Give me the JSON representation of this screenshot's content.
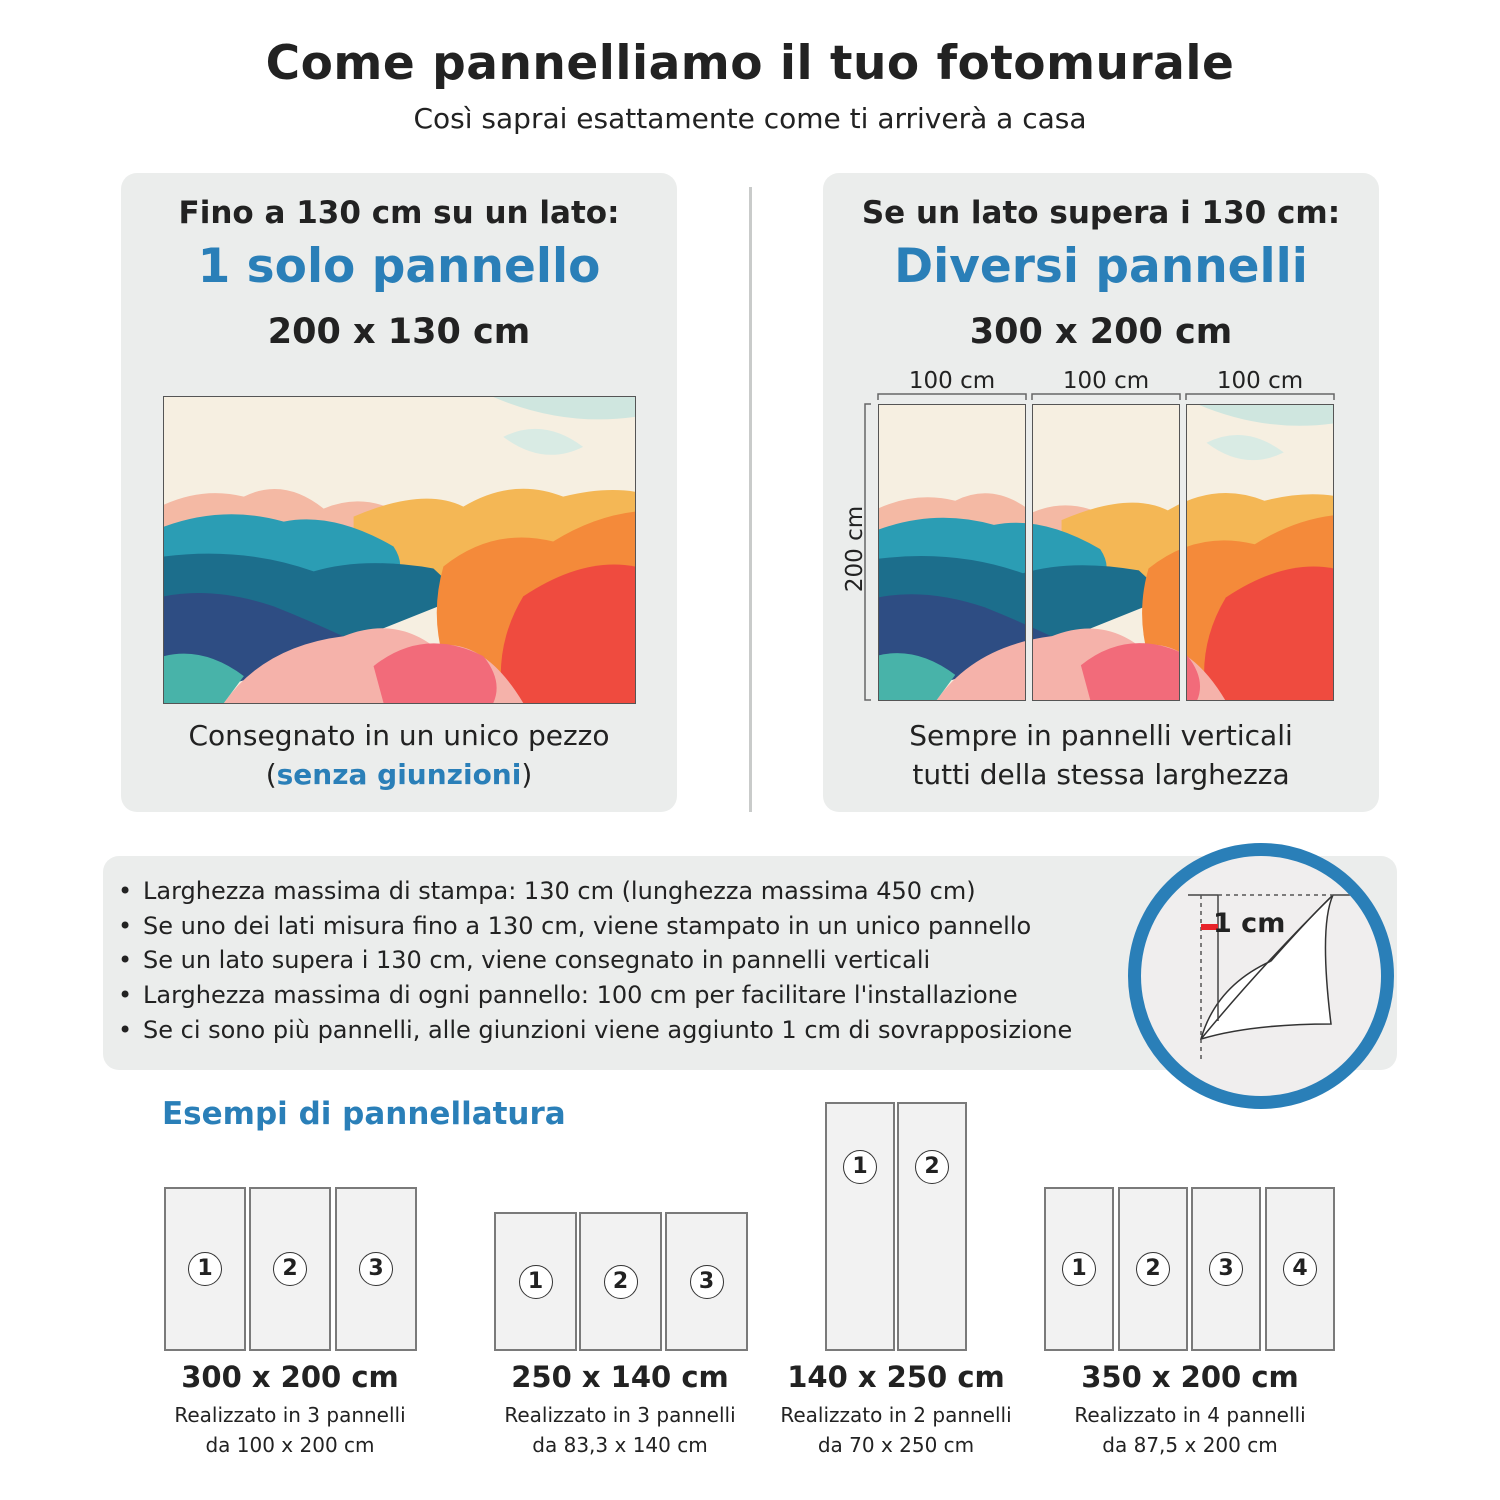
{
  "header": {
    "title": "Come pannelliamo il tuo fotomurale",
    "subtitle": "Così saprai esattamente come ti arriverà a casa"
  },
  "left_card": {
    "heading": "Fino a 130 cm su un lato:",
    "highlight": "1 solo pannello",
    "dimensions": "200 x 130 cm",
    "caption_line1": "Consegnato in un unico pezzo",
    "caption_open": "(",
    "caption_highlight": "senza giunzioni",
    "caption_close": ")"
  },
  "right_card": {
    "heading": "Se un lato supera i 130 cm:",
    "highlight": "Diversi pannelli",
    "dimensions": "300 x 200 cm",
    "panel_widths": [
      "100 cm",
      "100 cm",
      "100 cm"
    ],
    "height_label": "200 cm",
    "caption_line1": "Sempre in pannelli verticali",
    "caption_line2": "tutti della stessa larghezza"
  },
  "info": {
    "bullets": [
      "Larghezza massima di stampa: 130 cm (lunghezza massima 450 cm)",
      "Se uno dei lati misura fino a 130 cm, viene stampato in un unico pannello",
      "Se un lato supera i 130 cm, viene consegnato in pannelli verticali",
      "Larghezza massima di ogni pannello: 100 cm per facilitare l'installazione",
      "Se ci sono più pannelli, alle giunzioni viene aggiunto 1 cm di sovrapposizione"
    ],
    "overlap_label": "1 cm"
  },
  "examples": {
    "title": "Esempi di pannellatura",
    "items": [
      {
        "size": "300 x 200 cm",
        "line1": "Realizzato in 3 pannelli",
        "line2": "da 100 x 200 cm",
        "panels": [
          "1",
          "2",
          "3"
        ]
      },
      {
        "size": "250 x 140 cm",
        "line1": "Realizzato in 3 pannelli",
        "line2": "da 83,3 x 140 cm",
        "panels": [
          "1",
          "2",
          "3"
        ]
      },
      {
        "size": "140 x 250 cm",
        "line1": "Realizzato in 2 pannelli",
        "line2": "da 70 x 250 cm",
        "panels": [
          "1",
          "2"
        ]
      },
      {
        "size": "350 x 200 cm",
        "line1": "Realizzato in 4 pannelli",
        "line2": "da 87,5 x 200 cm",
        "panels": [
          "1",
          "2",
          "3",
          "4"
        ]
      }
    ]
  },
  "colors": {
    "accent": "#2a7fb8",
    "card_bg": "#ebedec",
    "overlap_marker": "#e8232a"
  }
}
